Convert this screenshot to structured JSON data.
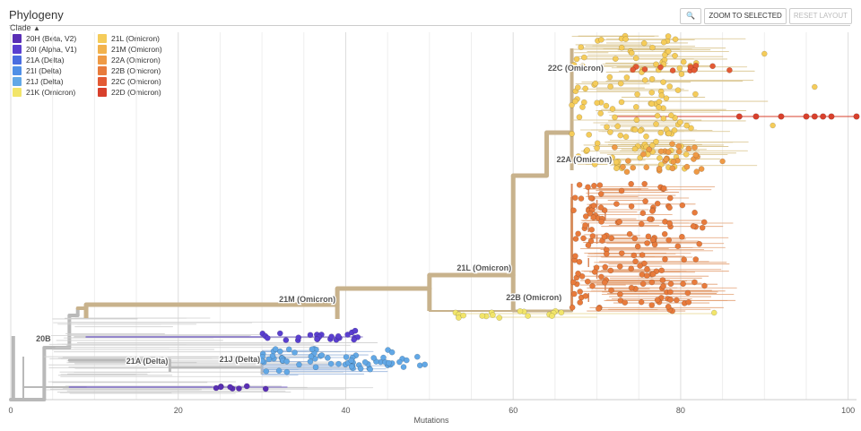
{
  "header": {
    "title": "Phylogeny",
    "search_icon": "magnifier-icon",
    "zoom_label": "ZOOM TO SELECTED",
    "reset_label": "RESET LAYOUT"
  },
  "legend": {
    "toggle_label": "Clade",
    "toggle_icon": "chevron-up-icon",
    "items": [
      {
        "label": "20H (Beta, V2)",
        "color": "#5a2fb5"
      },
      {
        "label": "20I (Alpha, V1)",
        "color": "#5a3fd0"
      },
      {
        "label": "21A (Delta)",
        "color": "#4a6de0"
      },
      {
        "label": "21I (Delta)",
        "color": "#4f8fe6"
      },
      {
        "label": "21J (Delta)",
        "color": "#62a8e6"
      },
      {
        "label": "21K (Omicron)",
        "color": "#f2e56a"
      },
      {
        "label": "21L (Omicron)",
        "color": "#f5cc5a"
      },
      {
        "label": "21M (Omicron)",
        "color": "#f2b24d"
      },
      {
        "label": "22A (Omicron)",
        "color": "#ef9a45"
      },
      {
        "label": "22B (Omicron)",
        "color": "#e87b3c"
      },
      {
        "label": "22C (Omicron)",
        "color": "#e35a34"
      },
      {
        "label": "22D (Omicron)",
        "color": "#d8402c"
      }
    ]
  },
  "chart_data": {
    "type": "scatter",
    "subtype": "phylogenetic-tree",
    "xlabel": "Mutations",
    "xlim": [
      0,
      101
    ],
    "xticks": [
      0,
      20,
      40,
      60,
      80,
      100
    ],
    "grid": true,
    "clade_labels": [
      {
        "label": "20B",
        "x": 5
      },
      {
        "label": "21A (Delta)",
        "x": 19
      },
      {
        "label": "21J (Delta)",
        "x": 30
      },
      {
        "label": "21M (Omicron)",
        "x": 39
      },
      {
        "label": "21L (Omicron)",
        "x": 60
      },
      {
        "label": "22B (Omicron)",
        "x": 66
      },
      {
        "label": "22A (Omicron)",
        "x": 72
      },
      {
        "label": "22C (Omicron)",
        "x": 71
      }
    ],
    "series": [
      {
        "name": "20H (Beta, V2)",
        "color": "#5a2fb5",
        "x_range": [
          24,
          33
        ],
        "count": 8
      },
      {
        "name": "20I (Alpha, V1)",
        "color": "#5a3fd0",
        "x_range": [
          30,
          42
        ],
        "count": 24
      },
      {
        "name": "21J (Delta)",
        "color": "#62a8e6",
        "x_range": [
          30,
          50
        ],
        "count": 70
      },
      {
        "name": "21K (Omicron)",
        "color": "#f2e56a",
        "x_range": [
          53,
          84
        ],
        "count": 18
      },
      {
        "name": "21L (Omicron)",
        "color": "#f5cc5a",
        "x_range": [
          67,
          91
        ],
        "count": 140
      },
      {
        "name": "22A (Omicron)",
        "color": "#ef9a45",
        "x_range": [
          72,
          85
        ],
        "count": 30
      },
      {
        "name": "22B (Omicron)",
        "color": "#e87b3c",
        "x_range": [
          67,
          83
        ],
        "count": 160
      },
      {
        "name": "22C (Omicron)",
        "color": "#e35a34",
        "x_range": [
          72,
          87
        ],
        "count": 12
      },
      {
        "name": "22D (Omicron)",
        "color": "#d8402c",
        "x_range": [
          87,
          101
        ],
        "count": 9
      }
    ]
  }
}
